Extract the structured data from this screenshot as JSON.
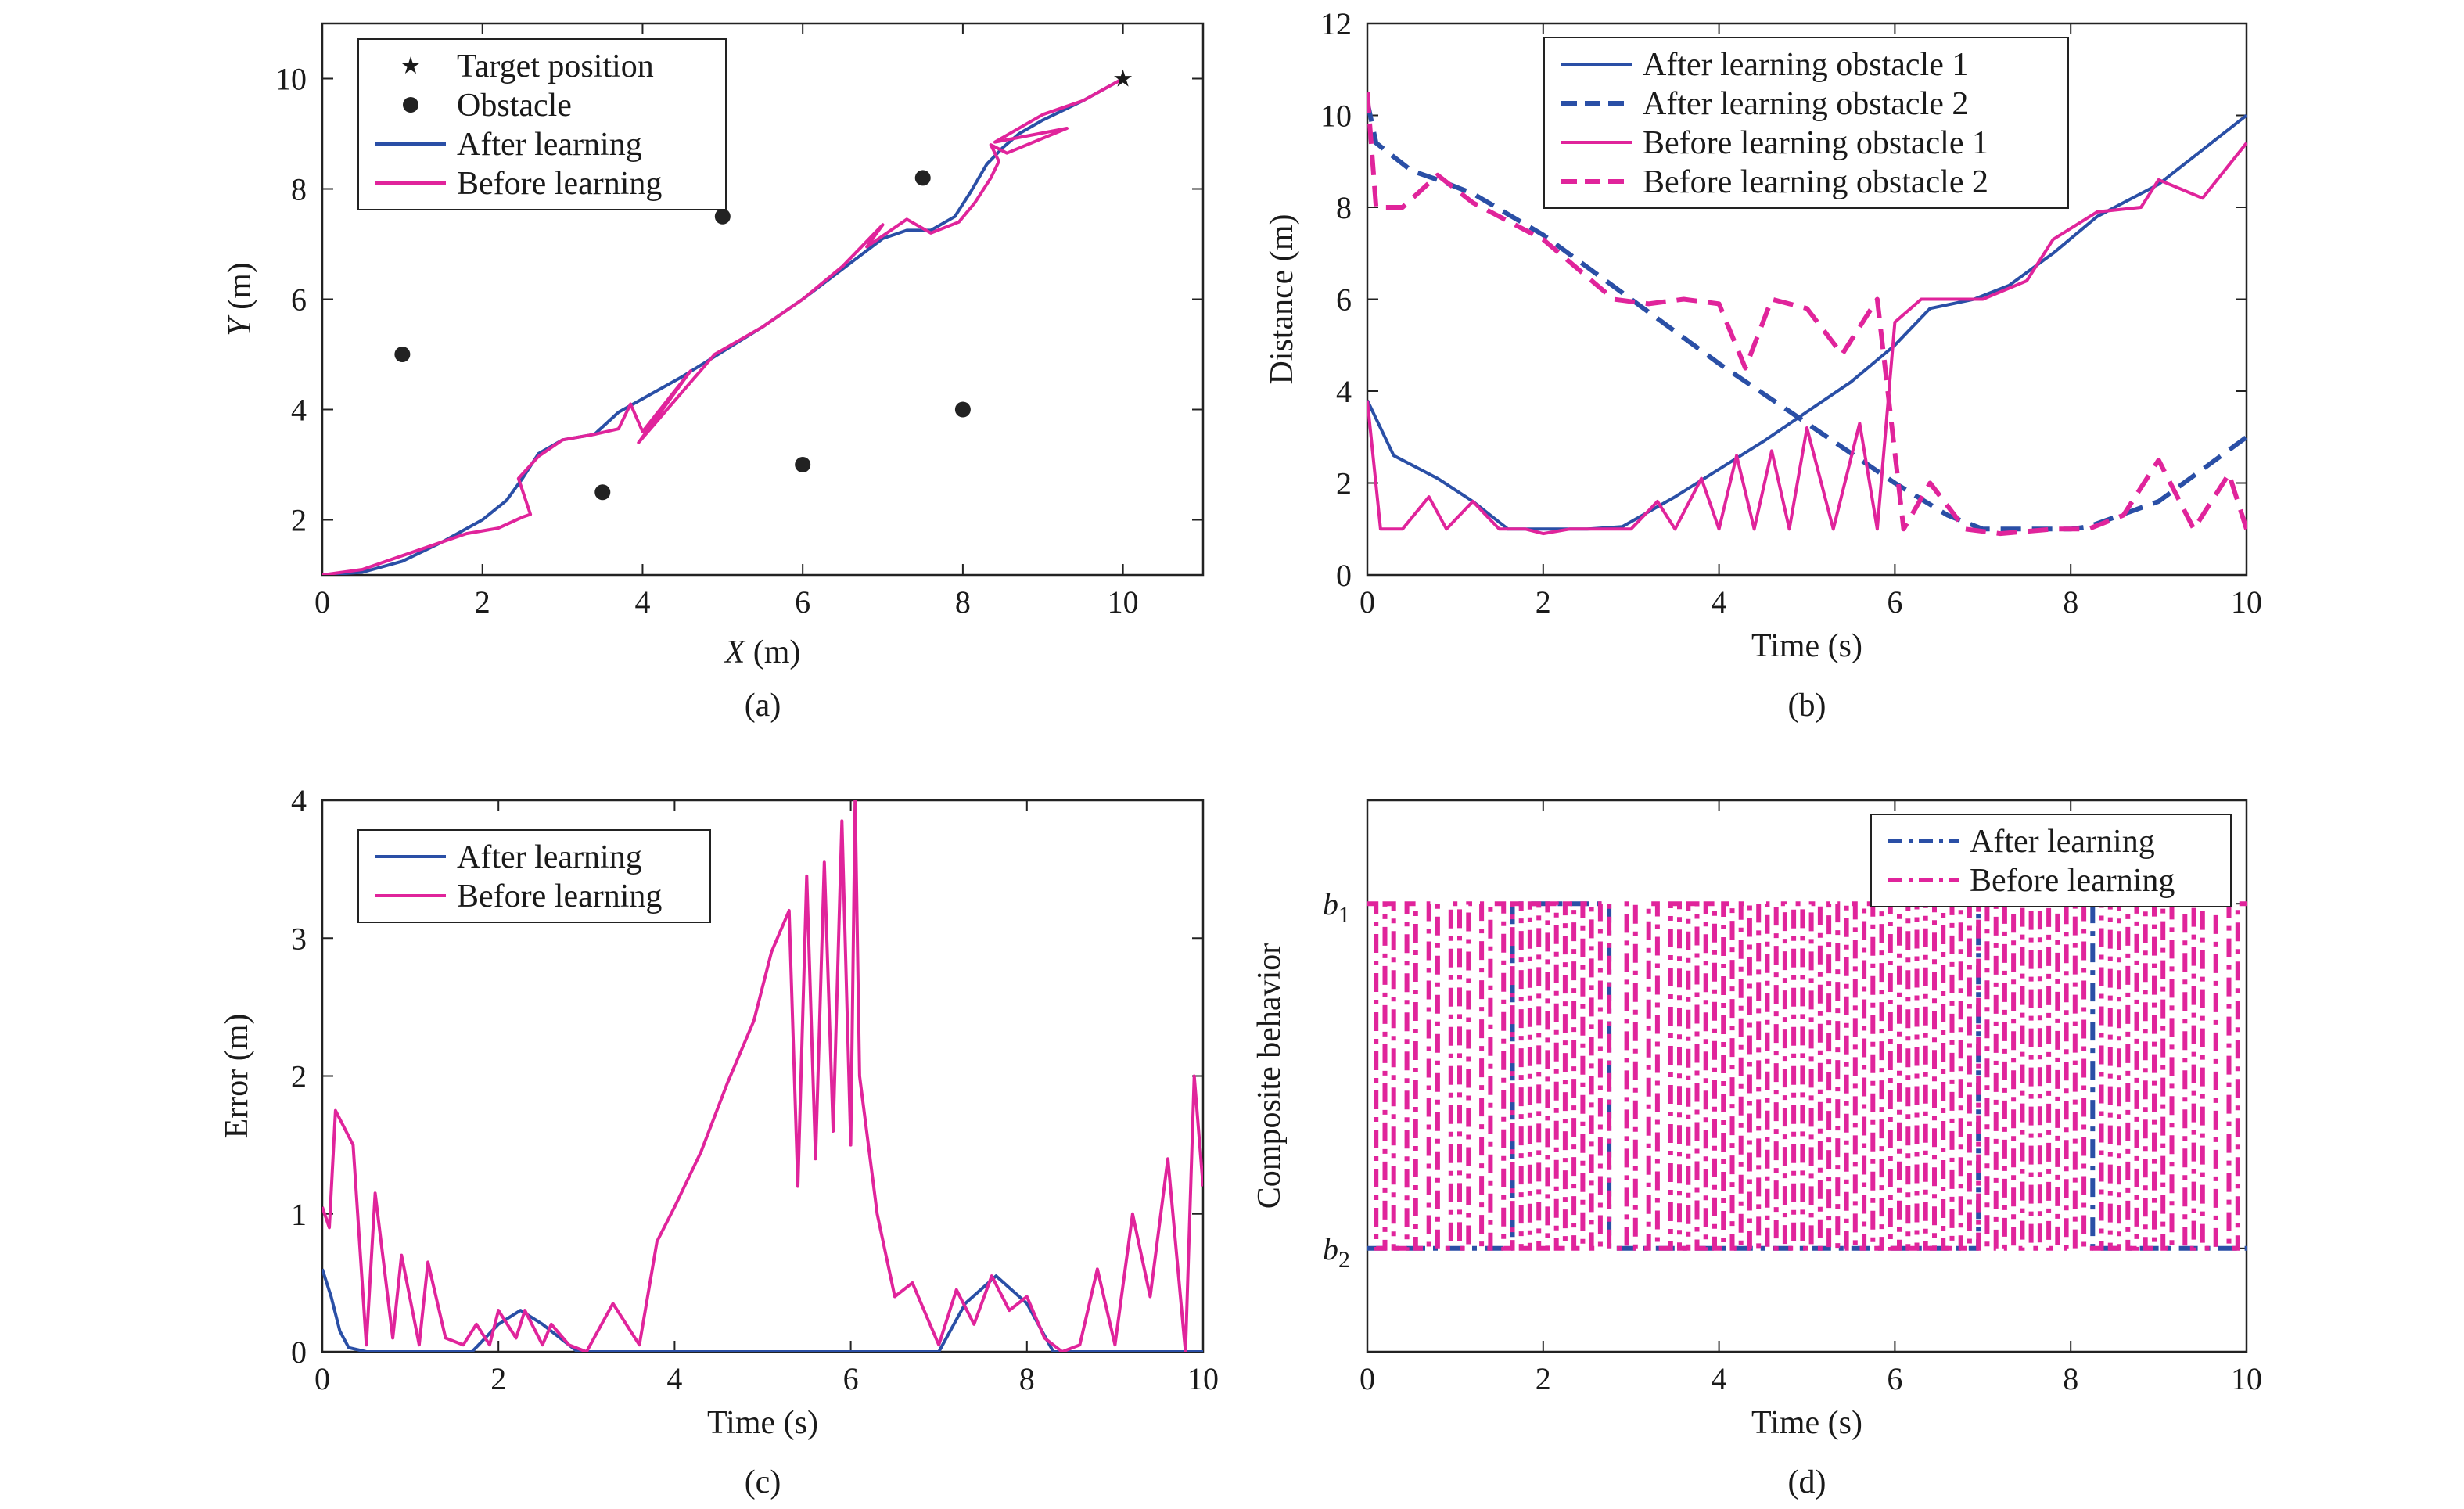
{
  "colors": {
    "after": "#2a4fa6",
    "before": "#e0249b",
    "markers": "#222222"
  },
  "chart_data": [
    {
      "id": "a",
      "caption": "(a)",
      "type": "line",
      "xlabel_var": "X",
      "xlabel_unit": " (m)",
      "ylabel_var": "Y",
      "ylabel_unit": " (m)",
      "xlim": [
        0,
        11
      ],
      "ylim": [
        1,
        11
      ],
      "xticks": [
        "0",
        "2",
        "4",
        "6",
        "8",
        "10"
      ],
      "yticks": [
        "2",
        "4",
        "6",
        "8",
        "10"
      ],
      "grid": false,
      "legend_position": "top-left",
      "legend": [
        "Target position",
        "Obstacle",
        "After learning",
        "Before learning"
      ],
      "target": {
        "x": 10,
        "y": 10
      },
      "obstacles": [
        {
          "x": 1,
          "y": 5
        },
        {
          "x": 3.5,
          "y": 2.5
        },
        {
          "x": 5,
          "y": 7.5
        },
        {
          "x": 6,
          "y": 3
        },
        {
          "x": 7.5,
          "y": 8.2
        },
        {
          "x": 8,
          "y": 4
        }
      ],
      "series": [
        {
          "name": "After learning",
          "style": "solid",
          "x": [
            0,
            0.5,
            1.0,
            1.5,
            2.0,
            2.3,
            2.5,
            2.7,
            3.0,
            3.4,
            3.7,
            4.5,
            5.5,
            6.0,
            6.5,
            7.0,
            7.3,
            7.6,
            7.9,
            8.1,
            8.3,
            8.5,
            8.7,
            9.0,
            9.5,
            10.0
          ],
          "y": [
            1.0,
            1.05,
            1.25,
            1.6,
            2.0,
            2.35,
            2.75,
            3.2,
            3.45,
            3.55,
            3.95,
            4.6,
            5.5,
            6.0,
            6.55,
            7.1,
            7.25,
            7.25,
            7.5,
            7.95,
            8.45,
            8.75,
            9.0,
            9.25,
            9.6,
            10.0
          ]
        },
        {
          "name": "Before learning",
          "style": "solid",
          "x": [
            0,
            0.5,
            1.0,
            1.5,
            1.8,
            2.2,
            2.5,
            2.6,
            2.45,
            2.7,
            3.0,
            3.4,
            3.7,
            3.85,
            4.0,
            4.6,
            3.95,
            4.9,
            5.5,
            6.0,
            6.5,
            7.0,
            6.8,
            7.3,
            7.6,
            7.95,
            8.15,
            8.35,
            8.45,
            8.35,
            8.55,
            9.3,
            8.4,
            9.0,
            9.5,
            10.0
          ],
          "y": [
            1.0,
            1.1,
            1.35,
            1.6,
            1.75,
            1.85,
            2.05,
            2.1,
            2.75,
            3.15,
            3.45,
            3.55,
            3.65,
            4.1,
            3.6,
            4.7,
            3.4,
            5.0,
            5.5,
            6.0,
            6.6,
            7.35,
            6.95,
            7.45,
            7.2,
            7.4,
            7.75,
            8.2,
            8.5,
            8.8,
            8.65,
            9.1,
            8.85,
            9.35,
            9.6,
            10.0
          ]
        }
      ]
    },
    {
      "id": "b",
      "caption": "(b)",
      "type": "line",
      "xlabel": "Time (s)",
      "ylabel": "Distance (m)",
      "xlim": [
        0,
        10
      ],
      "ylim": [
        0,
        12
      ],
      "xticks": [
        "0",
        "2",
        "4",
        "6",
        "8",
        "10"
      ],
      "yticks": [
        "0",
        "2",
        "4",
        "6",
        "8",
        "10",
        "12"
      ],
      "grid": false,
      "legend_position": "top-right",
      "legend": [
        "After learning obstacle 1",
        "After learning obstacle 2",
        "Before learning obstacle 1",
        "Before learning obstacle 2"
      ],
      "series": [
        {
          "name": "After learning obstacle 1",
          "style": "solid",
          "x": [
            0,
            0.3,
            0.8,
            1.2,
            1.6,
            2.0,
            2.5,
            2.9,
            3.5,
            4.5,
            5.5,
            6.0,
            6.4,
            6.9,
            7.3,
            7.8,
            8.3,
            9.0,
            10.0
          ],
          "y": [
            3.8,
            2.6,
            2.1,
            1.6,
            1.0,
            1.0,
            1.0,
            1.05,
            1.7,
            2.9,
            4.2,
            5.0,
            5.8,
            6.0,
            6.3,
            7.0,
            7.8,
            8.5,
            10.0
          ]
        },
        {
          "name": "After learning obstacle 2",
          "style": "dashed",
          "x": [
            0,
            0.1,
            0.5,
            0.8,
            1.2,
            2.0,
            3.0,
            4.0,
            5.0,
            6.0,
            6.6,
            7.0,
            8.0,
            8.2,
            9.0,
            10.0
          ],
          "y": [
            10.3,
            9.4,
            8.8,
            8.6,
            8.3,
            7.4,
            6.0,
            4.6,
            3.3,
            2.0,
            1.3,
            1.0,
            1.0,
            1.05,
            1.6,
            3.0
          ]
        },
        {
          "name": "Before learning obstacle 1",
          "style": "solid",
          "x": [
            0,
            0.15,
            0.4,
            0.7,
            0.9,
            1.2,
            1.5,
            1.8,
            2.0,
            2.3,
            2.6,
            3.0,
            3.3,
            3.5,
            3.8,
            4.0,
            4.2,
            4.4,
            4.6,
            4.8,
            5.0,
            5.3,
            5.6,
            5.8,
            6.0,
            6.3,
            7.0,
            7.5,
            7.8,
            8.3,
            8.8,
            9.0,
            9.5,
            10.0
          ],
          "y": [
            3.8,
            1.0,
            1.0,
            1.7,
            1.0,
            1.6,
            1.0,
            1.0,
            0.9,
            1.0,
            1.0,
            1.0,
            1.6,
            1.0,
            2.1,
            1.0,
            2.6,
            1.0,
            2.7,
            1.0,
            3.2,
            1.0,
            3.3,
            1.0,
            5.5,
            6.0,
            6.0,
            6.4,
            7.3,
            7.9,
            8.0,
            8.6,
            8.2,
            9.4
          ]
        },
        {
          "name": "Before learning obstacle 2",
          "style": "dashed",
          "x": [
            0,
            0.1,
            0.4,
            0.8,
            1.2,
            2.0,
            2.8,
            3.2,
            3.6,
            4.0,
            4.3,
            4.6,
            5.0,
            5.4,
            5.8,
            6.1,
            6.4,
            6.8,
            7.2,
            7.8,
            8.2,
            8.6,
            9.0,
            9.4,
            9.8,
            10.0
          ],
          "y": [
            10.5,
            8.0,
            8.0,
            8.7,
            8.1,
            7.3,
            6.0,
            5.9,
            6.0,
            5.9,
            4.5,
            6.0,
            5.8,
            4.8,
            6.0,
            1.0,
            2.0,
            1.0,
            0.9,
            1.0,
            1.0,
            1.3,
            2.5,
            1.0,
            2.2,
            1.0
          ]
        }
      ]
    },
    {
      "id": "c",
      "caption": "(c)",
      "type": "line",
      "xlabel": "Time (s)",
      "ylabel": "Error (m)",
      "xlim": [
        0,
        10
      ],
      "ylim": [
        0,
        4
      ],
      "xticks": [
        "0",
        "2",
        "4",
        "6",
        "8",
        "10"
      ],
      "yticks": [
        "0",
        "1",
        "2",
        "3",
        "4"
      ],
      "grid": false,
      "legend_position": "top-left",
      "legend": [
        "After learning",
        "Before learning"
      ],
      "series": [
        {
          "name": "After learning",
          "style": "solid",
          "x": [
            0,
            0.1,
            0.2,
            0.3,
            0.5,
            1.0,
            1.7,
            2.0,
            2.25,
            2.5,
            2.9,
            3.0,
            7.0,
            7.3,
            7.65,
            8.0,
            8.3,
            10.0
          ],
          "y": [
            0.6,
            0.4,
            0.15,
            0.03,
            0.0,
            0.0,
            0.0,
            0.2,
            0.3,
            0.2,
            0.0,
            0.0,
            0.0,
            0.35,
            0.55,
            0.35,
            0.0,
            0.0
          ]
        },
        {
          "name": "Before learning",
          "style": "solid",
          "x": [
            0,
            0.08,
            0.15,
            0.35,
            0.5,
            0.6,
            0.8,
            0.9,
            1.1,
            1.2,
            1.4,
            1.6,
            1.75,
            1.9,
            2.0,
            2.2,
            2.3,
            2.5,
            2.6,
            2.8,
            3.0,
            3.3,
            3.6,
            3.8,
            4.0,
            4.3,
            4.6,
            4.9,
            5.1,
            5.3,
            5.4,
            5.5,
            5.6,
            5.7,
            5.8,
            5.9,
            6.0,
            6.05,
            6.1,
            6.3,
            6.5,
            6.7,
            6.9,
            7.0,
            7.2,
            7.4,
            7.6,
            7.8,
            8.0,
            8.2,
            8.4,
            8.6,
            8.8,
            9.0,
            9.2,
            9.4,
            9.6,
            9.8,
            9.9,
            10.0
          ],
          "y": [
            1.05,
            0.9,
            1.75,
            1.5,
            0.05,
            1.15,
            0.1,
            0.7,
            0.05,
            0.65,
            0.1,
            0.05,
            0.2,
            0.05,
            0.3,
            0.1,
            0.3,
            0.05,
            0.2,
            0.05,
            0.0,
            0.35,
            0.05,
            0.8,
            1.05,
            1.45,
            1.95,
            2.4,
            2.9,
            3.2,
            1.2,
            3.45,
            1.4,
            3.55,
            1.6,
            3.85,
            1.5,
            4.0,
            2.0,
            1.0,
            0.4,
            0.5,
            0.2,
            0.05,
            0.45,
            0.2,
            0.55,
            0.3,
            0.4,
            0.1,
            0.0,
            0.05,
            0.6,
            0.05,
            1.0,
            0.4,
            1.4,
            0.0,
            2.0,
            1.2
          ]
        }
      ]
    },
    {
      "id": "d",
      "caption": "(d)",
      "type": "line",
      "xlabel": "Time (s)",
      "ylabel": "Composite behavior",
      "xlim": [
        0,
        10
      ],
      "ylim": [
        -0.3,
        1.3
      ],
      "xticks": [
        "0",
        "2",
        "4",
        "6",
        "8",
        "10"
      ],
      "ytick_labels": [
        {
          "base": "b",
          "sub": "1",
          "value": 1
        },
        {
          "base": "b",
          "sub": "2",
          "value": 0
        }
      ],
      "grid": false,
      "legend_position": "top-right",
      "legend": [
        "After learning",
        "Before learning"
      ],
      "series": [
        {
          "name": "After learning",
          "style": "dashdot",
          "x": [
            0,
            1.65,
            1.65,
            2.75,
            2.75,
            6.95,
            6.95,
            8.25,
            8.25,
            10.0
          ],
          "y": [
            0,
            0,
            1,
            1,
            0,
            0,
            1,
            1,
            0,
            0
          ]
        },
        {
          "name": "Before learning",
          "style": "dashdot",
          "description_free": true,
          "switch_times": [
            0.1,
            0.2,
            0.3,
            0.45,
            0.55,
            0.7,
            0.8,
            0.95,
            1.05,
            1.15,
            1.3,
            1.4,
            1.55,
            1.65,
            1.75,
            1.85,
            1.95,
            2.05,
            2.15,
            2.25,
            2.35,
            2.45,
            2.55,
            2.65,
            2.75,
            2.95,
            3.05,
            3.2,
            3.3,
            3.45,
            3.55,
            3.65,
            3.75,
            3.85,
            3.95,
            4.05,
            4.15,
            4.25,
            4.35,
            4.45,
            4.55,
            4.65,
            4.75,
            4.85,
            4.95,
            5.05,
            5.15,
            5.25,
            5.35,
            5.45,
            5.55,
            5.65,
            5.75,
            5.85,
            5.95,
            6.05,
            6.15,
            6.25,
            6.35,
            6.45,
            6.55,
            6.65,
            6.75,
            6.85,
            6.95,
            7.05,
            7.15,
            7.25,
            7.35,
            7.45,
            7.55,
            7.65,
            7.75,
            7.85,
            7.95,
            8.05,
            8.15,
            8.35,
            8.45,
            8.55,
            8.65,
            8.75,
            8.85,
            8.95,
            9.05,
            9.15,
            9.3,
            9.4,
            9.5,
            9.65,
            9.8,
            9.9
          ]
        }
      ]
    }
  ]
}
